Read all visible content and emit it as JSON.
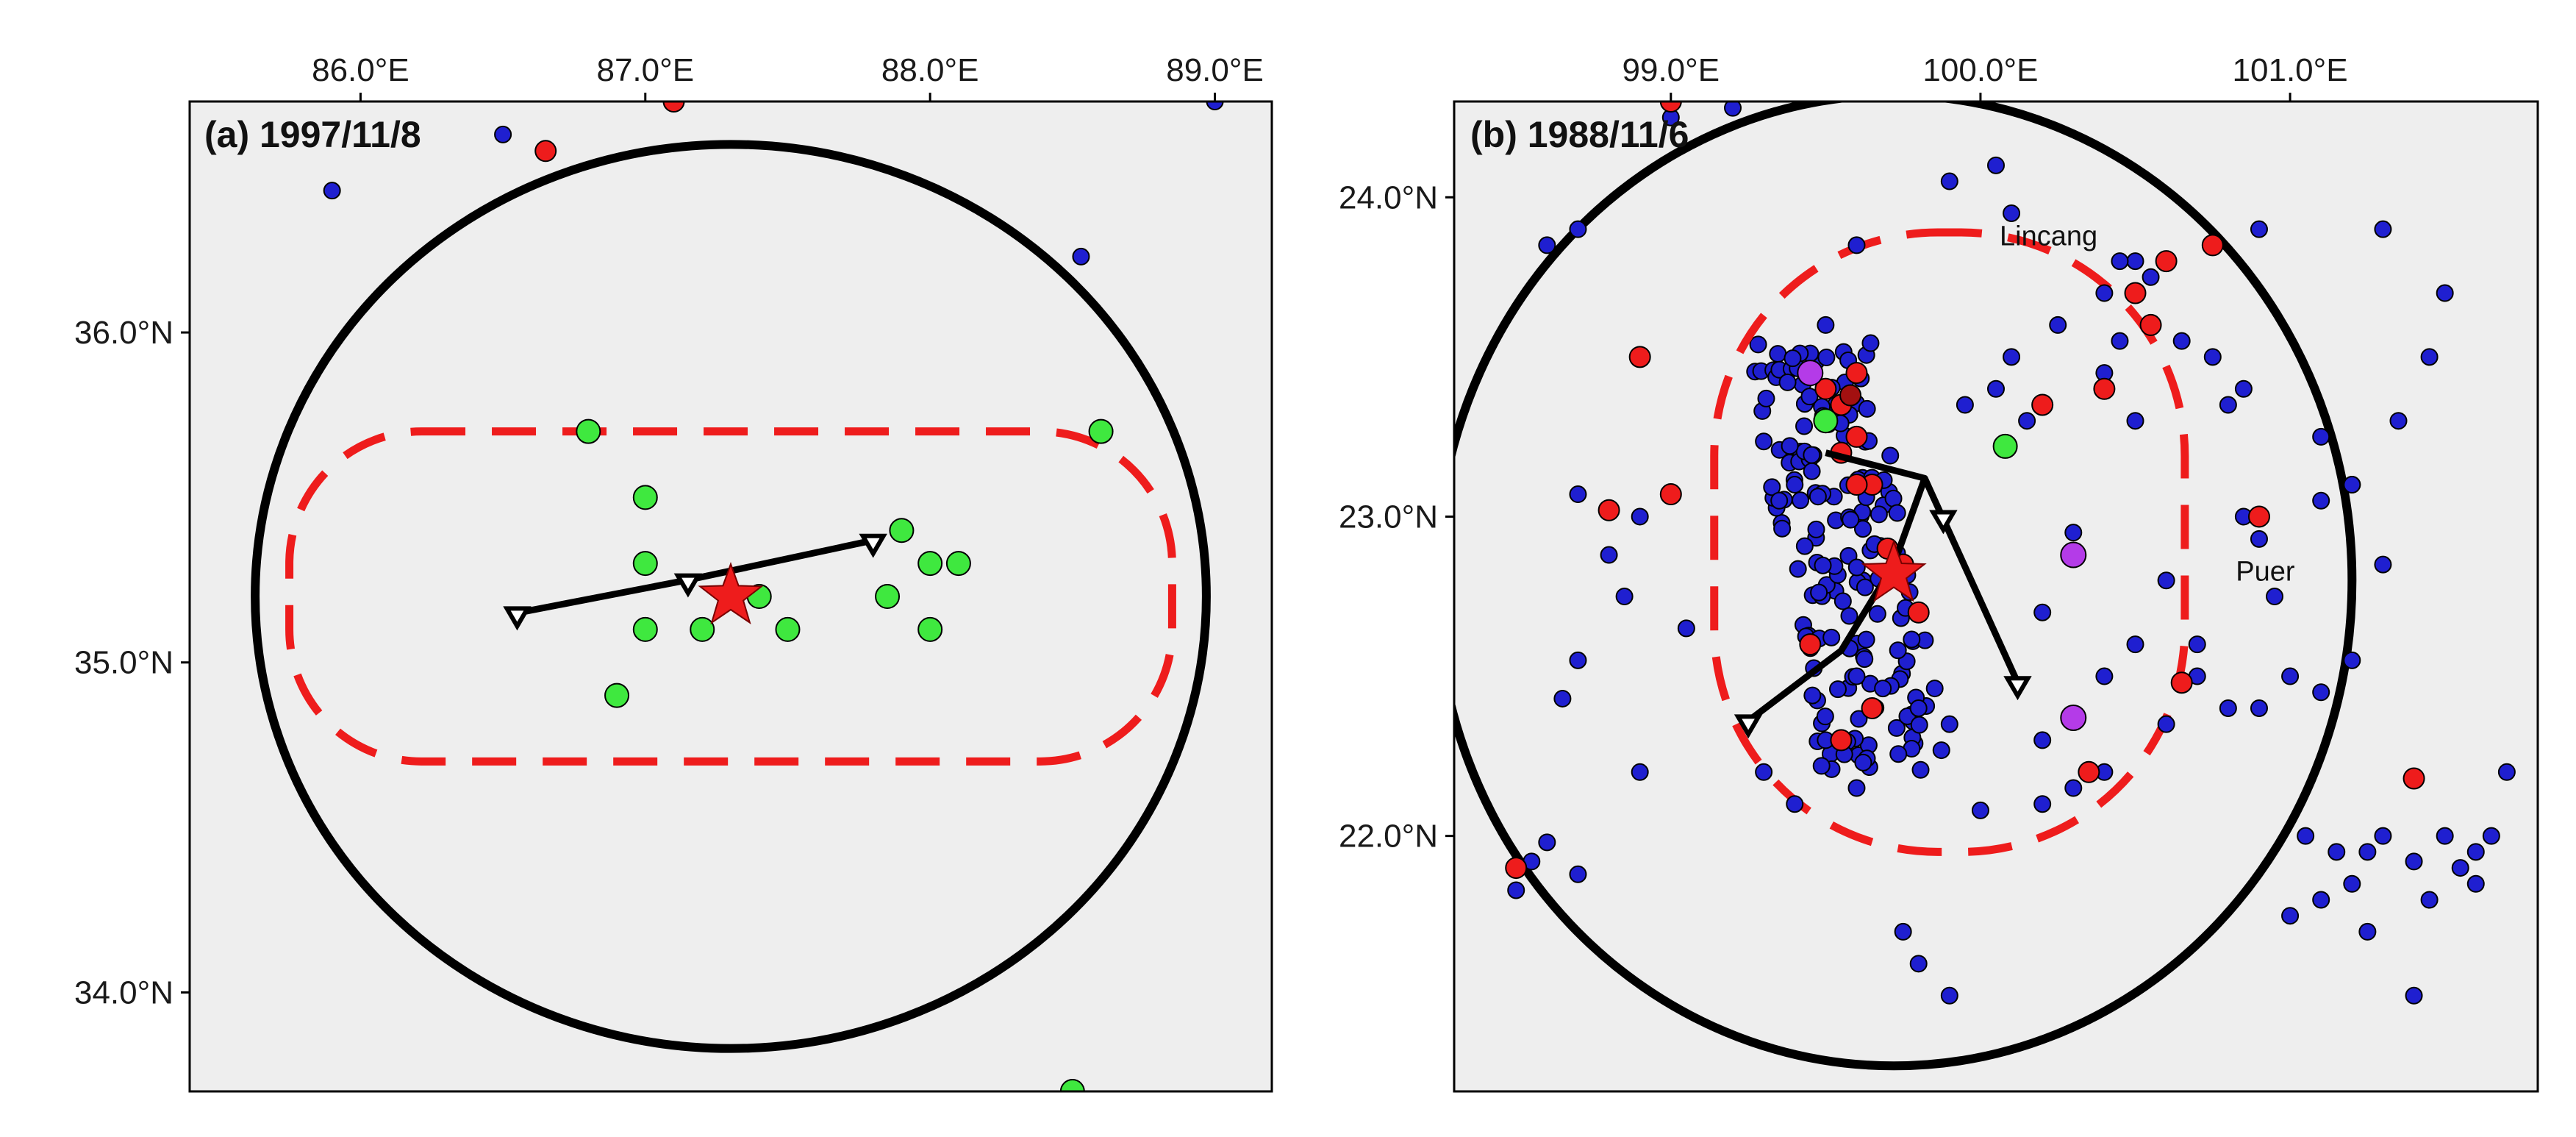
{
  "colors": {
    "blue": "#1f1fd0",
    "red": "#ee1c1c",
    "darkred": "#a31010",
    "green": "#3fe83f",
    "purple": "#b43be8",
    "circle": "#000000",
    "dashed": "#ee1c1c",
    "fault": "#000000",
    "relief_base": "#eeeeee"
  },
  "panels": [
    {
      "id": "a",
      "title": "(a) 1997/11/8",
      "lon_range": [
        85.4,
        89.2
      ],
      "lat_range": [
        33.7,
        36.7
      ],
      "lon_ticks": [
        {
          "v": 86.0,
          "t": "86.0°E"
        },
        {
          "v": 87.0,
          "t": "87.0°E"
        },
        {
          "v": 88.0,
          "t": "88.0°E"
        },
        {
          "v": 89.0,
          "t": "89.0°E"
        }
      ],
      "lat_ticks": [
        {
          "v": 36.0,
          "t": "36.0°N"
        },
        {
          "v": 35.0,
          "t": "35.0°N"
        },
        {
          "v": 34.0,
          "t": "34.0°N"
        }
      ],
      "epicenter": {
        "lon": 87.3,
        "lat": 35.2
      },
      "big_circle": {
        "center": [
          87.3,
          35.2
        ],
        "r_lon": 1.67,
        "r_lat": 1.37
      },
      "dashed_zone": {
        "center": [
          87.3,
          35.2
        ],
        "r_lon": 1.55,
        "r_lat": 0.5,
        "corner": 0.8
      },
      "faults": [
        {
          "points": [
            [
              86.55,
              35.15
            ],
            [
              87.15,
              35.25
            ],
            [
              87.8,
              35.37
            ]
          ],
          "teeth": [
            [
              86.55,
              35.15
            ],
            [
              87.15,
              35.25
            ],
            [
              87.8,
              35.37
            ]
          ]
        }
      ],
      "places": [],
      "events": {
        "green": [
          [
            86.8,
            35.7
          ],
          [
            87.0,
            35.5
          ],
          [
            87.0,
            35.3
          ],
          [
            87.0,
            35.1
          ],
          [
            87.2,
            35.1
          ],
          [
            87.4,
            35.2
          ],
          [
            87.5,
            35.1
          ],
          [
            87.9,
            35.4
          ],
          [
            87.85,
            35.2
          ],
          [
            88.0,
            35.3
          ],
          [
            88.1,
            35.3
          ],
          [
            88.0,
            35.1
          ],
          [
            86.9,
            34.9
          ],
          [
            88.6,
            35.7
          ],
          [
            88.5,
            33.7
          ]
        ],
        "blue": [
          [
            85.9,
            36.43
          ],
          [
            86.5,
            36.6
          ],
          [
            88.53,
            36.23
          ],
          [
            89.0,
            36.7
          ]
        ],
        "red": [
          [
            86.65,
            36.55
          ],
          [
            87.1,
            36.7
          ]
        ],
        "darkred": [],
        "purple": []
      }
    },
    {
      "id": "b",
      "title": "(b) 1988/11/6",
      "lon_range": [
        98.3,
        101.8
      ],
      "lat_range": [
        21.2,
        24.3
      ],
      "lon_ticks": [
        {
          "v": 99.0,
          "t": "99.0°E"
        },
        {
          "v": 100.0,
          "t": "100.0°E"
        },
        {
          "v": 101.0,
          "t": "101.0°E"
        }
      ],
      "lat_ticks": [
        {
          "v": 24.0,
          "t": "24.0°N"
        },
        {
          "v": 23.0,
          "t": "23.0°N"
        },
        {
          "v": 22.0,
          "t": "22.0°N"
        }
      ],
      "epicenter": {
        "lon": 99.72,
        "lat": 22.82
      },
      "big_circle": {
        "center": [
          99.72,
          22.8
        ],
        "r_lon": 1.48,
        "r_lat": 1.52
      },
      "dashed_zone": {
        "center": [
          99.9,
          22.92
        ],
        "r_lon": 0.76,
        "r_lat": 0.97,
        "corner": 0.95
      },
      "faults": [
        {
          "points": [
            [
              99.5,
              23.2
            ],
            [
              99.82,
              23.12
            ],
            [
              99.9,
              22.95
            ],
            [
              100.12,
              22.48
            ]
          ],
          "teeth": [
            [
              99.88,
              23.0
            ],
            [
              100.12,
              22.48
            ]
          ]
        },
        {
          "points": [
            [
              99.82,
              23.12
            ],
            [
              99.72,
              22.85
            ],
            [
              99.55,
              22.58
            ],
            [
              99.25,
              22.36
            ]
          ],
          "teeth": [
            [
              99.25,
              22.36
            ]
          ]
        }
      ],
      "places": [
        {
          "name": "Lincang",
          "lon": 100.22,
          "lat": 23.85
        },
        {
          "name": "Puer",
          "lon": 100.92,
          "lat": 22.8
        }
      ],
      "events": {
        "blue": [
          [
            98.6,
            23.85
          ],
          [
            98.7,
            23.9
          ],
          [
            99.0,
            24.25
          ],
          [
            99.2,
            24.28
          ],
          [
            99.9,
            24.05
          ],
          [
            100.05,
            24.1
          ],
          [
            100.1,
            23.95
          ],
          [
            99.5,
            23.6
          ],
          [
            99.6,
            23.85
          ],
          [
            99.4,
            23.1
          ],
          [
            99.35,
            23.05
          ],
          [
            98.9,
            23.0
          ],
          [
            98.7,
            23.07
          ],
          [
            98.8,
            22.88
          ],
          [
            98.85,
            22.75
          ],
          [
            99.05,
            22.65
          ],
          [
            98.7,
            22.55
          ],
          [
            98.65,
            22.43
          ],
          [
            98.9,
            22.2
          ],
          [
            98.6,
            21.98
          ],
          [
            98.55,
            21.92
          ],
          [
            98.5,
            21.83
          ],
          [
            98.7,
            21.88
          ],
          [
            99.5,
            22.3
          ],
          [
            99.6,
            22.15
          ],
          [
            99.9,
            22.35
          ],
          [
            100.2,
            22.3
          ],
          [
            100.3,
            22.15
          ],
          [
            100.4,
            22.2
          ],
          [
            100.2,
            22.1
          ],
          [
            100.0,
            22.08
          ],
          [
            99.8,
            21.6
          ],
          [
            99.9,
            21.5
          ],
          [
            100.6,
            22.35
          ],
          [
            100.5,
            22.6
          ],
          [
            100.4,
            22.5
          ],
          [
            100.7,
            22.5
          ],
          [
            100.8,
            22.4
          ],
          [
            100.9,
            22.4
          ],
          [
            101.0,
            22.5
          ],
          [
            101.1,
            22.45
          ],
          [
            101.2,
            22.55
          ],
          [
            101.3,
            22.85
          ],
          [
            100.95,
            22.75
          ],
          [
            100.9,
            22.93
          ],
          [
            101.1,
            23.05
          ],
          [
            101.2,
            23.1
          ],
          [
            101.1,
            23.25
          ],
          [
            100.8,
            23.35
          ],
          [
            100.85,
            23.4
          ],
          [
            100.75,
            23.5
          ],
          [
            100.9,
            23.9
          ],
          [
            101.5,
            23.7
          ],
          [
            101.45,
            23.5
          ],
          [
            101.35,
            23.3
          ],
          [
            101.2,
            23.1
          ],
          [
            100.5,
            23.3
          ],
          [
            100.4,
            23.45
          ],
          [
            100.45,
            23.55
          ],
          [
            100.55,
            23.6
          ],
          [
            100.65,
            23.55
          ],
          [
            100.4,
            23.7
          ],
          [
            100.5,
            23.8
          ],
          [
            100.55,
            23.75
          ],
          [
            100.45,
            23.8
          ],
          [
            100.25,
            23.6
          ],
          [
            100.1,
            23.5
          ],
          [
            99.95,
            23.35
          ],
          [
            100.05,
            23.4
          ],
          [
            100.15,
            23.3
          ],
          [
            101.05,
            22.0
          ],
          [
            101.15,
            21.95
          ],
          [
            101.2,
            21.85
          ],
          [
            101.25,
            21.95
          ],
          [
            101.3,
            22.0
          ],
          [
            101.4,
            21.92
          ],
          [
            101.45,
            21.8
          ],
          [
            101.5,
            22.0
          ],
          [
            101.55,
            21.9
          ],
          [
            101.6,
            21.95
          ],
          [
            101.65,
            22.0
          ],
          [
            101.7,
            22.2
          ],
          [
            101.6,
            21.85
          ],
          [
            101.4,
            21.5
          ],
          [
            101.25,
            21.7
          ],
          [
            101.1,
            21.8
          ],
          [
            101.0,
            21.75
          ],
          [
            100.7,
            22.6
          ],
          [
            100.6,
            22.8
          ],
          [
            100.85,
            23.0
          ],
          [
            101.3,
            23.9
          ],
          [
            100.3,
            22.95
          ],
          [
            100.2,
            22.7
          ],
          [
            99.8,
            22.4
          ],
          [
            99.6,
            22.5
          ],
          [
            99.4,
            22.1
          ],
          [
            99.3,
            22.2
          ],
          [
            99.75,
            21.7
          ]
        ],
        "red": [
          [
            98.9,
            23.5
          ],
          [
            99.0,
            24.3
          ],
          [
            98.8,
            23.02
          ],
          [
            99.0,
            23.07
          ],
          [
            99.45,
            22.6
          ],
          [
            99.5,
            23.4
          ],
          [
            99.55,
            23.35
          ],
          [
            99.6,
            23.25
          ],
          [
            99.65,
            23.1
          ],
          [
            99.7,
            22.9
          ],
          [
            99.75,
            22.85
          ],
          [
            99.8,
            22.7
          ],
          [
            99.65,
            22.4
          ],
          [
            99.55,
            22.3
          ],
          [
            100.6,
            23.8
          ],
          [
            100.5,
            23.7
          ],
          [
            100.55,
            23.6
          ],
          [
            100.4,
            23.4
          ],
          [
            100.2,
            23.35
          ],
          [
            100.75,
            23.85
          ],
          [
            100.9,
            23.0
          ],
          [
            100.65,
            22.48
          ],
          [
            100.35,
            22.2
          ],
          [
            101.4,
            22.18
          ],
          [
            98.5,
            21.9
          ],
          [
            99.6,
            23.45
          ],
          [
            99.55,
            23.2
          ],
          [
            99.6,
            23.1
          ]
        ],
        "darkred": [
          [
            99.58,
            23.38
          ]
        ],
        "green": [
          [
            99.5,
            23.3
          ],
          [
            100.08,
            23.22
          ]
        ],
        "purple": [
          [
            99.45,
            23.45
          ],
          [
            100.3,
            22.88
          ],
          [
            100.3,
            22.37
          ]
        ]
      },
      "cluster": {
        "lon_min": 99.3,
        "lon_max": 99.9,
        "lat_min": 22.2,
        "lat_max": 23.55
      }
    }
  ]
}
